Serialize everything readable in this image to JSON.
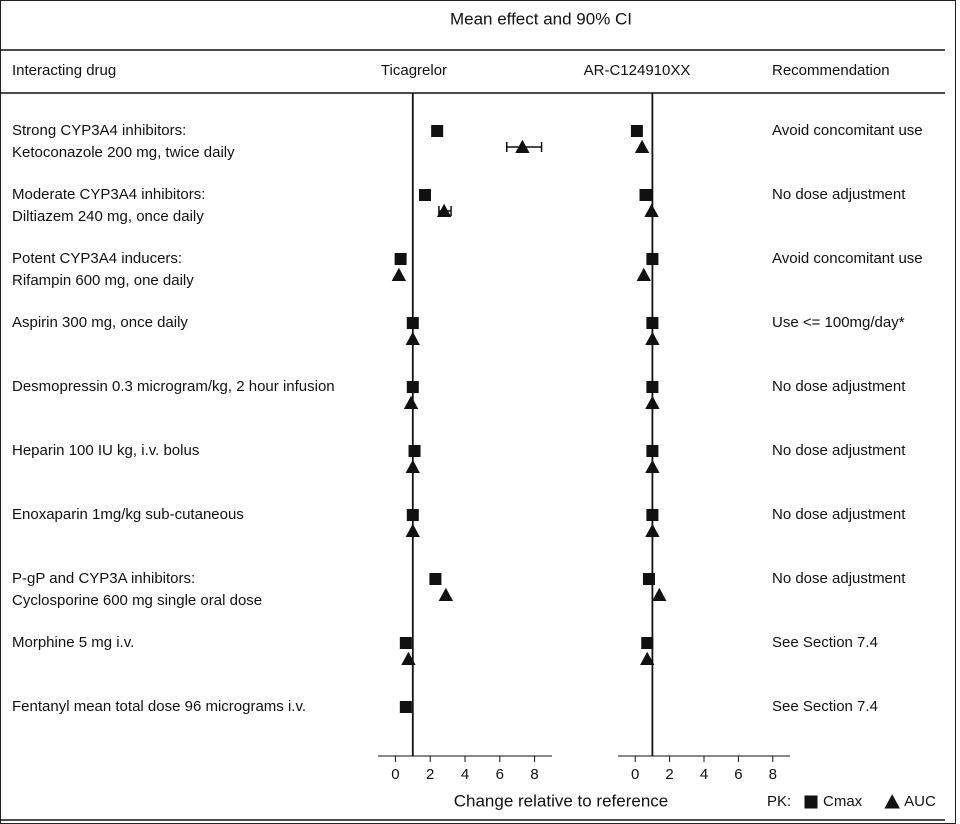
{
  "chart_data": {
    "type": "forest",
    "title": "Mean effect and 90% CI",
    "columns": {
      "drug": "Interacting drug",
      "panels": [
        "Ticagrelor",
        "AR-C124910XX"
      ],
      "recommendation": "Recommendation"
    },
    "xlabel": "Change relative to reference",
    "legend_title": "PK:",
    "series": [
      {
        "name": "Cmax",
        "marker": "square",
        "color": "#111111"
      },
      {
        "name": "AUC",
        "marker": "triangle",
        "color": "#111111"
      }
    ],
    "categories": [
      [
        "Strong CYP3A4 inhibitors:",
        "Ketoconazole 200 mg, twice daily"
      ],
      [
        "Moderate CYP3A4 inhibitors:",
        "Diltiazem 240 mg, once daily"
      ],
      [
        "Potent CYP3A4 inducers:",
        "Rifampin 600 mg, one daily"
      ],
      [
        "Aspirin 300 mg, once daily"
      ],
      [
        "Desmopressin 0.3  microgram/kg, 2 hour infusion"
      ],
      [
        "Heparin 100 IU kg, i.v. bolus"
      ],
      [
        "Enoxaparin 1mg/kg sub-cutaneous"
      ],
      [
        "P-gP and CYP3A inhibitors:",
        "Cyclosporine 600 mg single oral dose"
      ],
      [
        "Morphine 5 mg i.v."
      ],
      [
        "Fentanyl mean total dose 96 micrograms i.v."
      ]
    ],
    "recommendations": [
      "Avoid concomitant use",
      "No dose adjustment",
      "Avoid concomitant use",
      "Use <= 100mg/day*",
      "No dose adjustment",
      "No dose adjustment",
      "No dose adjustment",
      "No dose adjustment",
      "See Section 7.4",
      "See Section 7.4"
    ],
    "panels": [
      {
        "values": [
          [
            2.4,
            1.7,
            0.3,
            1.0,
            1.0,
            1.1,
            1.0,
            2.3,
            0.6,
            0.6
          ],
          [
            7.3,
            2.8,
            0.2,
            1.0,
            0.9,
            1.0,
            1.0,
            2.9,
            0.75,
            null
          ]
        ],
        "ci": [
          null,
          [
            [
              6.4,
              8.4
            ],
            [
              2.5,
              3.2
            ],
            null,
            null,
            null,
            null,
            null,
            null,
            null,
            null
          ]
        ]
      },
      {
        "values": [
          [
            0.1,
            0.6,
            1.0,
            1.0,
            1.0,
            1.0,
            1.0,
            0.8,
            0.7,
            null
          ],
          [
            0.4,
            0.95,
            0.5,
            1.0,
            1.0,
            1.0,
            1.0,
            1.4,
            0.7,
            null
          ]
        ],
        "ci": [
          null,
          null
        ]
      }
    ],
    "reference": 1,
    "xlim": [
      -1,
      9
    ],
    "xticks": [
      0,
      2,
      4,
      6,
      8
    ]
  }
}
